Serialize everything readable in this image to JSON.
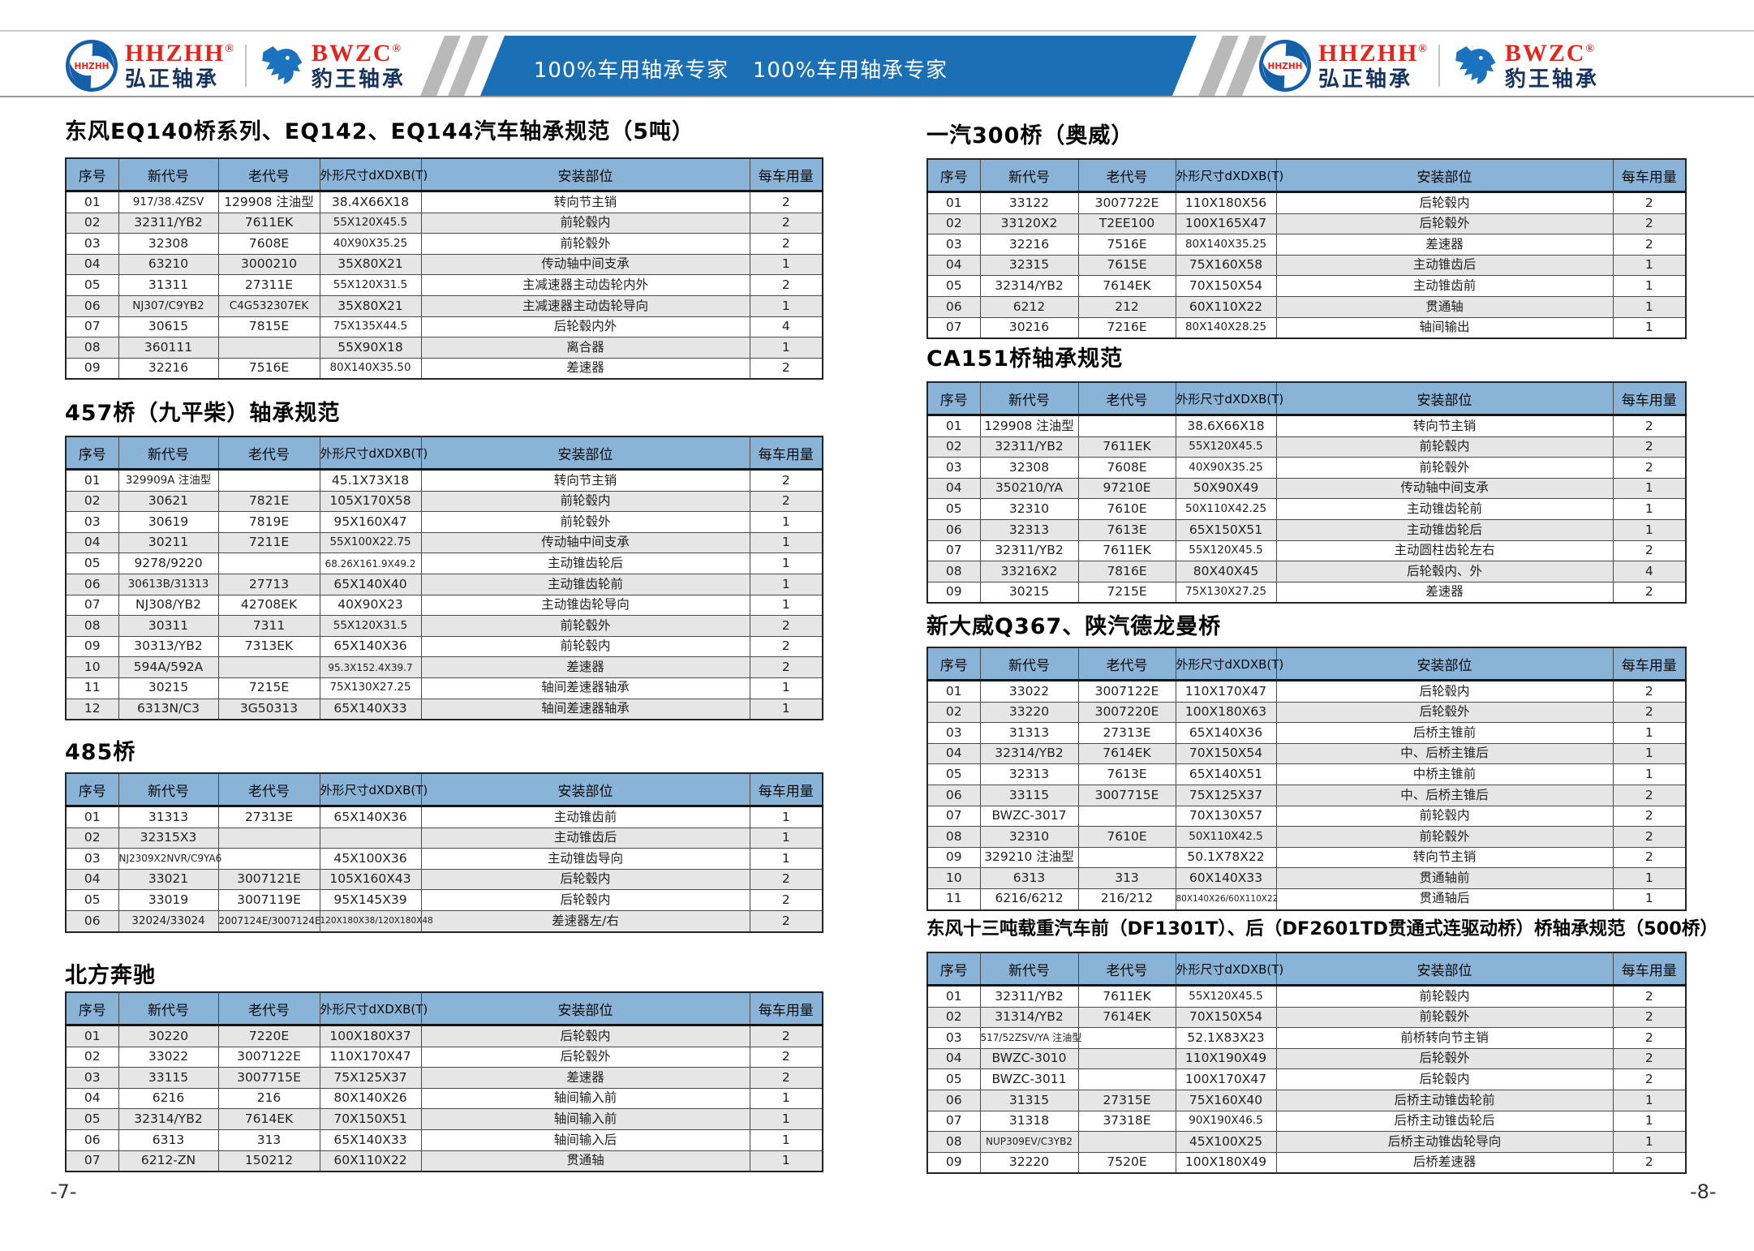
{
  "header": {
    "banner_texts": [
      "100%车用轴承专家",
      "100%车用轴承专家"
    ],
    "brands": {
      "hhzhh": {
        "logo_text": "HHZHH",
        "name": "HHZHH",
        "reg": "®",
        "cn_name": "弘正轴承"
      },
      "bwzc": {
        "name": "BWZC",
        "reg": "®",
        "cn_name": "豹王轴承"
      }
    }
  },
  "colors": {
    "banner_blue": "#1a6fb5",
    "table_header_blue": "#8ab3d8",
    "row_alt_gray": "#e6e6e6",
    "stripe_gray": "#b9b9b9",
    "logo_red": "#e3261d",
    "logo_blue": "#1460a8",
    "brand_cn_navy": "#16335f"
  },
  "table_columns": [
    "序号",
    "新代号",
    "老代号",
    "外形尺寸dXDXB(T)",
    "安装部位",
    "每车用量"
  ],
  "pages": [
    {
      "page_number": "-7-",
      "tables": [
        {
          "title": "东风EQ140桥系列、EQ142、EQ144汽车轴承规范（5吨）",
          "shade_first_row": false,
          "rows": [
            [
              "01",
              "917/38.4ZSV",
              "129908 注油型",
              "38.4X66X18",
              "转向节主销",
              "2"
            ],
            [
              "02",
              "32311/YB2",
              "7611EK",
              "55X120X45.5",
              "前轮毂内",
              "2"
            ],
            [
              "03",
              "32308",
              "7608E",
              "40X90X35.25",
              "前轮毂外",
              "2"
            ],
            [
              "04",
              "63210",
              "3000210",
              "35X80X21",
              "传动轴中间支承",
              "1"
            ],
            [
              "05",
              "31311",
              "27311E",
              "55X120X31.5",
              "主减速器主动齿轮内外",
              "2"
            ],
            [
              "06",
              "NJ307/C9YB2",
              "C4G532307EK",
              "35X80X21",
              "主减速器主动齿轮导向",
              "1"
            ],
            [
              "07",
              "30615",
              "7815E",
              "75X135X44.5",
              "后轮毂内外",
              "4"
            ],
            [
              "08",
              "360111",
              "",
              "55X90X18",
              "离合器",
              "1"
            ],
            [
              "09",
              "32216",
              "7516E",
              "80X140X35.50",
              "差速器",
              "2"
            ]
          ]
        },
        {
          "title": "457桥（九平柴）轴承规范",
          "shade_first_row": false,
          "rows": [
            [
              "01",
              "329909A 注油型",
              "",
              "45.1X73X18",
              "转向节主销",
              "2"
            ],
            [
              "02",
              "30621",
              "7821E",
              "105X170X58",
              "前轮毂内",
              "2"
            ],
            [
              "03",
              "30619",
              "7819E",
              "95X160X47",
              "前轮毂外",
              "1"
            ],
            [
              "04",
              "30211",
              "7211E",
              "55X100X22.75",
              "传动轴中间支承",
              "1"
            ],
            [
              "05",
              "9278/9220",
              "",
              "68.26X161.9X49.2",
              "主动锥齿轮后",
              "1"
            ],
            [
              "06",
              "30613B/31313",
              "27713",
              "65X140X40",
              "主动锥齿轮前",
              "1"
            ],
            [
              "07",
              "NJ308/YB2",
              "42708EK",
              "40X90X23",
              "主动锥齿轮导向",
              "1"
            ],
            [
              "08",
              "30311",
              "7311",
              "55X120X31.5",
              "前轮毂外",
              "2"
            ],
            [
              "09",
              "30313/YB2",
              "7313EK",
              "65X140X36",
              "前轮毂内",
              "2"
            ],
            [
              "10",
              "594A/592A",
              "",
              "95.3X152.4X39.7",
              "差速器",
              "2"
            ],
            [
              "11",
              "30215",
              "7215E",
              "75X130X27.25",
              "轴间差速器轴承",
              "1"
            ],
            [
              "12",
              "6313N/C3",
              "3G50313",
              "65X140X33",
              "轴间差速器轴承",
              "1"
            ]
          ]
        },
        {
          "title": "485桥",
          "shade_first_row": false,
          "rows": [
            [
              "01",
              "31313",
              "27313E",
              "65X140X36",
              "主动锥齿前",
              "1"
            ],
            [
              "02",
              "32315X3",
              "",
              "",
              "主动锥齿后",
              "1"
            ],
            [
              "03",
              "NJ2309X2NVR/C9YA6",
              "",
              "45X100X36",
              "主动锥齿导向",
              "1"
            ],
            [
              "04",
              "33021",
              "3007121E",
              "105X160X43",
              "后轮毂内",
              "2"
            ],
            [
              "05",
              "33019",
              "3007119E",
              "95X145X39",
              "后轮毂内",
              "2"
            ],
            [
              "06",
              "32024/33024",
              "2007124E/3007124E",
              "120X180X38/120X180X48",
              "差速器左/右",
              "2"
            ]
          ]
        },
        {
          "title": "北方奔驰",
          "shade_first_row": true,
          "rows": [
            [
              "01",
              "30220",
              "7220E",
              "100X180X37",
              "后轮毂内",
              "2"
            ],
            [
              "02",
              "33022",
              "3007122E",
              "110X170X47",
              "后轮毂外",
              "2"
            ],
            [
              "03",
              "33115",
              "3007715E",
              "75X125X37",
              "差速器",
              "2"
            ],
            [
              "04",
              "6216",
              "216",
              "80X140X26",
              "轴间输入前",
              "1"
            ],
            [
              "05",
              "32314/YB2",
              "7614EK",
              "70X150X51",
              "轴间输入前",
              "1"
            ],
            [
              "06",
              "6313",
              "313",
              "65X140X33",
              "轴间输入后",
              "1"
            ],
            [
              "07",
              "6212-ZN",
              "150212",
              "60X110X22",
              "贯通轴",
              "1"
            ]
          ]
        }
      ]
    },
    {
      "page_number": "-8-",
      "tables": [
        {
          "title": "一汽300桥（奥威）",
          "shade_first_row": false,
          "rows": [
            [
              "01",
              "33122",
              "3007722E",
              "110X180X56",
              "后轮毂内",
              "2"
            ],
            [
              "02",
              "33120X2",
              "T2EE100",
              "100X165X47",
              "后轮毂外",
              "2"
            ],
            [
              "03",
              "32216",
              "7516E",
              "80X140X35.25",
              "差速器",
              "2"
            ],
            [
              "04",
              "32315",
              "7615E",
              "75X160X58",
              "主动锥齿后",
              "1"
            ],
            [
              "05",
              "32314/YB2",
              "7614EK",
              "70X150X54",
              "主动锥齿前",
              "1"
            ],
            [
              "06",
              "6212",
              "212",
              "60X110X22",
              "贯通轴",
              "1"
            ],
            [
              "07",
              "30216",
              "7216E",
              "80X140X28.25",
              "轴间输出",
              "1"
            ]
          ]
        },
        {
          "title": "CA151桥轴承规范",
          "shade_first_row": false,
          "rows": [
            [
              "01",
              "129908 注油型",
              "",
              "38.6X66X18",
              "转向节主销",
              "2"
            ],
            [
              "02",
              "32311/YB2",
              "7611EK",
              "55X120X45.5",
              "前轮毂内",
              "2"
            ],
            [
              "03",
              "32308",
              "7608E",
              "40X90X35.25",
              "前轮毂外",
              "2"
            ],
            [
              "04",
              "350210/YA",
              "97210E",
              "50X90X49",
              "传动轴中间支承",
              "1"
            ],
            [
              "05",
              "32310",
              "7610E",
              "50X110X42.25",
              "主动锥齿轮前",
              "1"
            ],
            [
              "06",
              "32313",
              "7613E",
              "65X150X51",
              "主动锥齿轮后",
              "1"
            ],
            [
              "07",
              "32311/YB2",
              "7611EK",
              "55X120X45.5",
              "主动圆柱齿轮左右",
              "2"
            ],
            [
              "08",
              "33216X2",
              "7816E",
              "80X40X45",
              "后轮毂内、外",
              "4"
            ],
            [
              "09",
              "30215",
              "7215E",
              "75X130X27.25",
              "差速器",
              "2"
            ]
          ]
        },
        {
          "title": "新大威Q367、陕汽德龙曼桥",
          "shade_first_row": false,
          "rows": [
            [
              "01",
              "33022",
              "3007122E",
              "110X170X47",
              "后轮毂内",
              "2"
            ],
            [
              "02",
              "33220",
              "3007220E",
              "100X180X63",
              "后轮毂外",
              "2"
            ],
            [
              "03",
              "31313",
              "27313E",
              "65X140X36",
              "后桥主锥前",
              "1"
            ],
            [
              "04",
              "32314/YB2",
              "7614EK",
              "70X150X54",
              "中、后桥主锥后",
              "1"
            ],
            [
              "05",
              "32313",
              "7613E",
              "65X140X51",
              "中桥主锥前",
              "1"
            ],
            [
              "06",
              "33115",
              "3007715E",
              "75X125X37",
              "中、后桥主锥后",
              "2"
            ],
            [
              "07",
              "BWZC-3017",
              "",
              "70X130X57",
              "前轮毂内",
              "2"
            ],
            [
              "08",
              "32310",
              "7610E",
              "50X110X42.5",
              "前轮毂外",
              "2"
            ],
            [
              "09",
              "329210 注油型",
              "",
              "50.1X78X22",
              "转向节主销",
              "2"
            ],
            [
              "10",
              "6313",
              "313",
              "60X140X33",
              "贯通轴前",
              "1"
            ],
            [
              "11",
              "6216/6212",
              "216/212",
              "80X140X26/60X110X22",
              "贯通轴后",
              "1"
            ]
          ]
        },
        {
          "title": "东风十三吨载重汽车前（DF1301T）、后（DF2601TD贯通式连驱动桥）桥轴承规范（500桥）",
          "shade_first_row": false,
          "rows": [
            [
              "01",
              "32311/YB2",
              "7611EK",
              "55X120X45.5",
              "前轮毂内",
              "2"
            ],
            [
              "02",
              "31314/YB2",
              "7614EK",
              "70X150X54",
              "前轮毂外",
              "2"
            ],
            [
              "03",
              "517/52ZSV/YA 注油型",
              "",
              "52.1X83X23",
              "前桥转向节主销",
              "2"
            ],
            [
              "04",
              "BWZC-3010",
              "",
              "110X190X49",
              "后轮毂外",
              "2"
            ],
            [
              "05",
              "BWZC-3011",
              "",
              "100X170X47",
              "后轮毂内",
              "2"
            ],
            [
              "06",
              "31315",
              "27315E",
              "75X160X40",
              "后桥主动锥齿轮前",
              "1"
            ],
            [
              "07",
              "31318",
              "37318E",
              "90X190X46.5",
              "后桥主动锥齿轮后",
              "1"
            ],
            [
              "08",
              "NUP309EV/C3YB2",
              "",
              "45X100X25",
              "后桥主动锥齿轮导向",
              "1"
            ],
            [
              "09",
              "32220",
              "7520E",
              "100X180X49",
              "后桥差速器",
              "2"
            ]
          ]
        }
      ]
    }
  ]
}
